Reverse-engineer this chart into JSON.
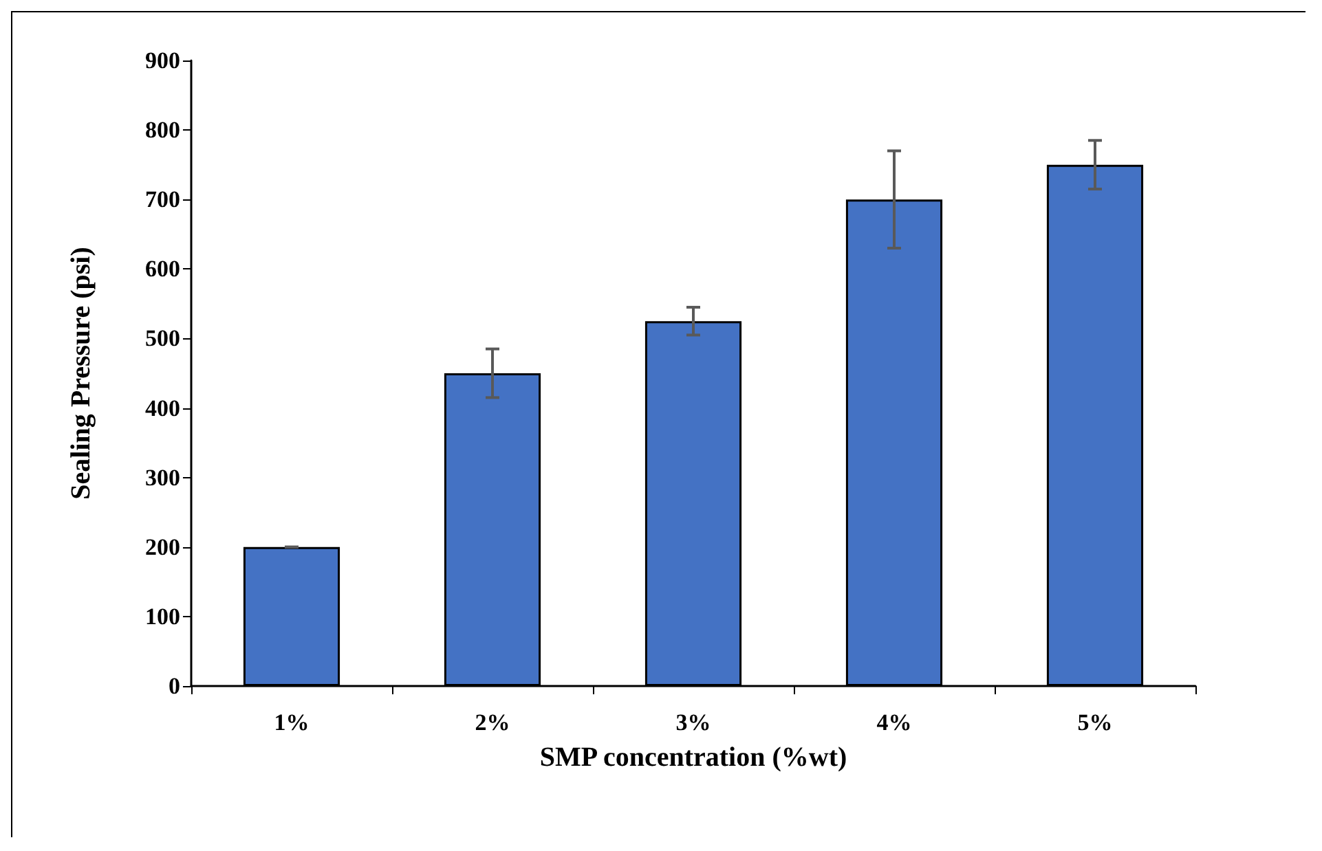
{
  "chart_data": {
    "type": "bar",
    "xlabel": "SMP concentration (%wt)",
    "ylabel": "Sealing Pressure (psi)",
    "categories": [
      "1%",
      "2%",
      "3%",
      "4%",
      "5%"
    ],
    "values": [
      200,
      450,
      525,
      700,
      750
    ],
    "errors": [
      0,
      35,
      20,
      70,
      35
    ],
    "color": "#4472c4",
    "ylim": [
      0,
      900
    ],
    "yticks": [
      0,
      100,
      200,
      300,
      400,
      500,
      600,
      700,
      800,
      900
    ],
    "grid": false
  }
}
